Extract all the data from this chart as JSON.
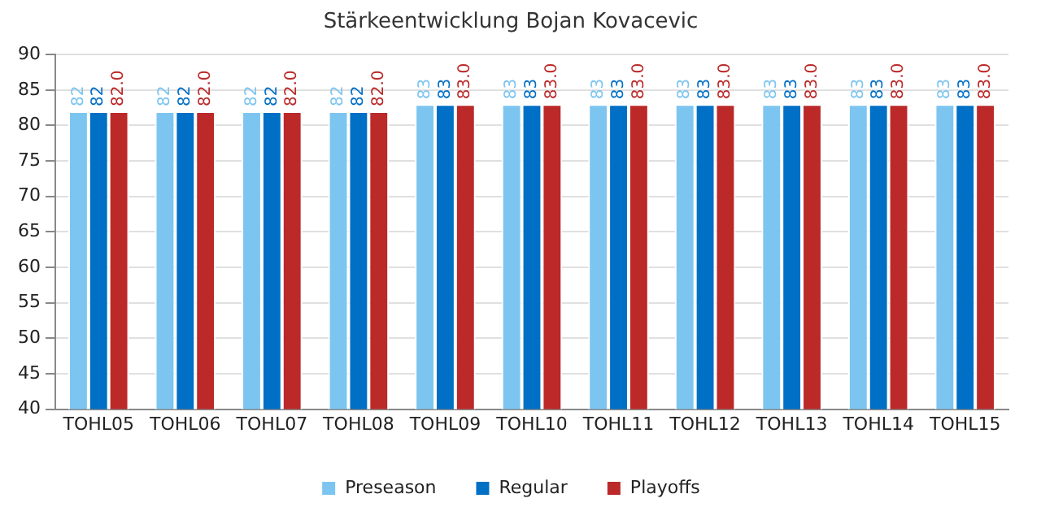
{
  "chart_data": {
    "type": "bar",
    "title": "Stärkeentwicklung Bojan Kovacevic",
    "categories": [
      "TOHL05",
      "TOHL06",
      "TOHL07",
      "TOHL08",
      "TOHL09",
      "TOHL10",
      "TOHL11",
      "TOHL12",
      "TOHL13",
      "TOHL14",
      "TOHL15"
    ],
    "series": [
      {
        "name": "Preseason",
        "color": "#7cc5f0",
        "values": [
          82,
          82,
          82,
          82,
          83,
          83,
          83,
          83,
          83,
          83,
          83
        ],
        "value_labels": [
          "82",
          "82",
          "82",
          "82",
          "83",
          "83",
          "83",
          "83",
          "83",
          "83",
          "83"
        ]
      },
      {
        "name": "Regular",
        "color": "#006fc6",
        "values": [
          82,
          82,
          82,
          82,
          83,
          83,
          83,
          83,
          83,
          83,
          83
        ],
        "value_labels": [
          "82",
          "82",
          "82",
          "82",
          "83",
          "83",
          "83",
          "83",
          "83",
          "83",
          "83"
        ]
      },
      {
        "name": "Playoffs",
        "color": "#bb2929",
        "values": [
          82,
          82,
          82,
          82,
          83,
          83,
          83,
          83,
          83,
          83,
          83
        ],
        "value_labels": [
          "82.0",
          "82.0",
          "82.0",
          "82.0",
          "83.0",
          "83.0",
          "83.0",
          "83.0",
          "83.0",
          "83.0",
          "83.0"
        ]
      }
    ],
    "ylim": [
      40,
      90
    ],
    "yticks": [
      40,
      45,
      50,
      55,
      60,
      65,
      70,
      75,
      80,
      85,
      90
    ],
    "grid": "y",
    "legend": "bottom"
  }
}
